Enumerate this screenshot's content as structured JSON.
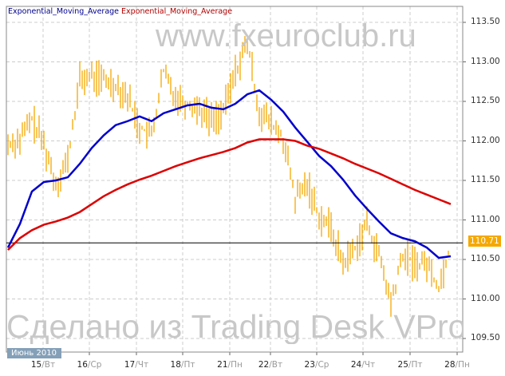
{
  "watermarks": {
    "top": "www.fxeuroclub.ru",
    "bottom": "Сделано из Trading Desk VPro"
  },
  "chart_data": {
    "type": "line",
    "legend": [
      "Exponential_Moving_Average",
      "Exponential_Moving_Average"
    ],
    "legend_placement": "top-left",
    "grid": true,
    "month_label": "Июнь 2010",
    "ylim": [
      109.5,
      113.5
    ],
    "yticks": [
      "113.50",
      "113.00",
      "112.50",
      "112.00",
      "111.50",
      "111.00",
      "110.50",
      "110.00",
      "109.50"
    ],
    "xticks": [
      {
        "day": "15",
        "wd": "Вт"
      },
      {
        "day": "16",
        "wd": "Ср"
      },
      {
        "day": "17",
        "wd": "Чт"
      },
      {
        "day": "18",
        "wd": "Пт"
      },
      {
        "day": "21",
        "wd": "Пн"
      },
      {
        "day": "22",
        "wd": "Вт"
      },
      {
        "day": "23",
        "wd": "Ср"
      },
      {
        "day": "24",
        "wd": "Чт"
      },
      {
        "day": "25",
        "wd": "Пт"
      },
      {
        "day": "28",
        "wd": "Пн"
      }
    ],
    "last_price": "110.71",
    "price": {
      "color": "#f5a800",
      "values": [
        111.96,
        112.02,
        112.27,
        111.96,
        111.46,
        111.76,
        112.77,
        112.82,
        112.77,
        112.72,
        112.57,
        112.17,
        112.07,
        112.87,
        112.57,
        112.47,
        112.42,
        112.27,
        112.37,
        112.87,
        113.23,
        112.37,
        112.22,
        112.02,
        111.26,
        111.46,
        111.06,
        110.9,
        110.45,
        110.65,
        110.95,
        110.55,
        109.94,
        110.55,
        110.45,
        110.45,
        110.15,
        110.7
      ]
    },
    "series": [
      {
        "name": "Exponential_Moving_Average",
        "color": "#0000cc",
        "values": [
          110.65,
          110.95,
          111.36,
          111.48,
          111.5,
          111.54,
          111.71,
          111.91,
          112.07,
          112.2,
          112.25,
          112.31,
          112.25,
          112.35,
          112.4,
          112.45,
          112.47,
          112.42,
          112.4,
          112.47,
          112.59,
          112.64,
          112.52,
          112.37,
          112.17,
          111.99,
          111.81,
          111.68,
          111.51,
          111.31,
          111.14,
          110.98,
          110.83,
          110.77,
          110.73,
          110.65,
          110.52,
          110.54
        ]
      },
      {
        "name": "Exponential_Moving_Average",
        "color": "#dd0000",
        "values": [
          110.62,
          110.77,
          110.87,
          110.94,
          110.98,
          111.03,
          111.1,
          111.2,
          111.3,
          111.38,
          111.45,
          111.51,
          111.56,
          111.62,
          111.68,
          111.73,
          111.78,
          111.82,
          111.86,
          111.91,
          111.98,
          112.02,
          112.02,
          112.02,
          112.0,
          111.94,
          111.9,
          111.84,
          111.78,
          111.71,
          111.65,
          111.59,
          111.52,
          111.45,
          111.38,
          111.32,
          111.26,
          111.2
        ]
      }
    ]
  }
}
